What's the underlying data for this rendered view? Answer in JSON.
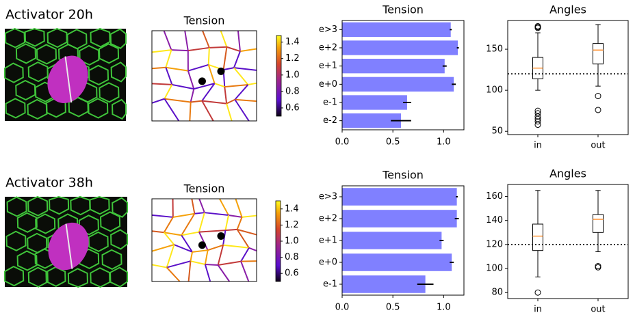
{
  "panels": [
    {
      "label": "Activator 20h"
    },
    {
      "label": "Activator 38h"
    }
  ],
  "chart_data": [
    {
      "type": "network",
      "title": "Tension",
      "clim": [
        0.5,
        1.48
      ],
      "colorbar_ticks": [
        0.6,
        0.8,
        {
          "value": 1.0,
          "label": "1.0"
        },
        1.2,
        1.4
      ]
    },
    {
      "type": "barh",
      "title": "Tension",
      "color": "#8080ff",
      "categories": [
        "e-2",
        "e-1",
        "e+0",
        "e+1",
        "e+2",
        "e>3"
      ],
      "values": [
        0.58,
        0.64,
        1.1,
        1.01,
        1.14,
        1.07
      ],
      "errors": [
        0.1,
        0.04,
        0.02,
        0.02,
        0.01,
        0.01
      ],
      "xlim": [
        0,
        1.2
      ],
      "xticks": [
        {
          "value": 0,
          "label": "0.0"
        },
        {
          "value": 0.5,
          "label": "0.5"
        },
        {
          "value": 1.0,
          "label": "1.0"
        }
      ]
    },
    {
      "type": "box",
      "title": "Angles",
      "categories": [
        "in",
        "out"
      ],
      "boxes": [
        {
          "whislo": 100,
          "q1": 114,
          "median": 127,
          "q3": 140,
          "whishi": 170,
          "fliers": [
            178,
            177,
            176,
            75,
            72,
            68,
            65,
            62,
            58
          ]
        },
        {
          "whislo": 105,
          "q1": 132,
          "median": 149,
          "q3": 157,
          "whishi": 180,
          "fliers": [
            93,
            76
          ]
        }
      ],
      "hline": 120,
      "median_color": "#ff7f0e",
      "ylim": [
        46,
        185
      ],
      "yticks": [
        50,
        100,
        150
      ]
    },
    {
      "type": "network",
      "title": "Tension",
      "clim": [
        0.5,
        1.5
      ],
      "colorbar_ticks": [
        0.6,
        0.8,
        {
          "value": 1.0,
          "label": "1.0"
        },
        1.2,
        1.4
      ]
    },
    {
      "type": "barh",
      "title": "Tension",
      "color": "#8080ff",
      "categories": [
        "e-1",
        "e+0",
        "e+1",
        "e+2",
        "e>3"
      ],
      "values": [
        0.82,
        1.08,
        0.98,
        1.13,
        1.13
      ],
      "errors": [
        0.08,
        0.02,
        0.02,
        0.02,
        0.01
      ],
      "xlim": [
        0,
        1.2
      ],
      "xticks": [
        {
          "value": 0,
          "label": "0.0"
        },
        {
          "value": 0.5,
          "label": "0.5"
        },
        {
          "value": 1.0,
          "label": "1.0"
        }
      ]
    },
    {
      "type": "box",
      "title": "Angles",
      "categories": [
        "in",
        "out"
      ],
      "boxes": [
        {
          "whislo": 93,
          "q1": 115,
          "median": 127,
          "q3": 137,
          "whishi": 165,
          "fliers": [
            80
          ]
        },
        {
          "whislo": 114,
          "q1": 130,
          "median": 141,
          "q3": 145,
          "whishi": 165,
          "fliers": [
            102,
            101
          ]
        }
      ],
      "hline": 120,
      "median_color": "#ff7f0e",
      "ylim": [
        75,
        170
      ],
      "yticks": [
        80,
        100,
        120,
        140,
        160
      ]
    }
  ]
}
